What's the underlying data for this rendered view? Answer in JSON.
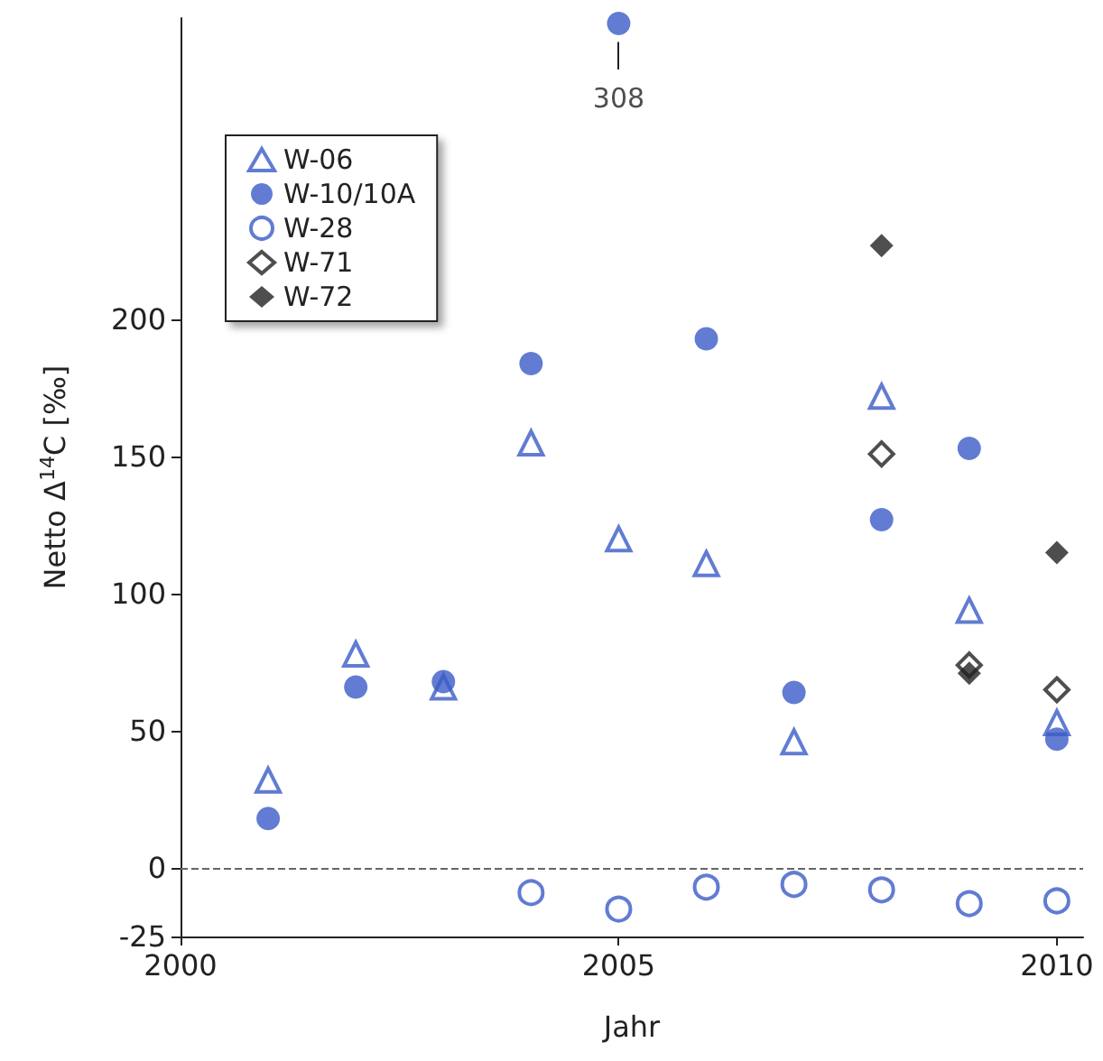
{
  "chart_data": {
    "type": "scatter",
    "xlabel": "Jahr",
    "ylabel": "Netto Δ$^{14}$C [‰]",
    "xlim": [
      2000,
      2010.3
    ],
    "xticks": [
      2000,
      2005,
      2010
    ],
    "ylim": [
      -25,
      310
    ],
    "yticks": [
      -25,
      0,
      50,
      100,
      150,
      200
    ],
    "grid": false,
    "legend": "top left",
    "ref_lines": [
      {
        "axis": "y",
        "value": 0,
        "color": "#666666",
        "line_style": "dashed"
      }
    ],
    "annotations": [
      {
        "text": "308",
        "x": 2005,
        "y": 308
      }
    ],
    "series": [
      {
        "name": "W-06",
        "color": "#3a5bc7",
        "marker": "triangle-open",
        "x": [
          2001,
          2002,
          2003,
          2004,
          2005,
          2006,
          2007,
          2008,
          2009,
          2010
        ],
        "values": [
          32,
          78,
          66,
          155,
          120,
          111,
          46,
          172,
          94,
          53
        ]
      },
      {
        "name": "W-10/10A",
        "color": "#3a5bc7",
        "marker": "circle",
        "x": [
          2001,
          2002,
          2003,
          2004,
          2005,
          2006,
          2007,
          2008,
          2009,
          2010
        ],
        "values": [
          18,
          66,
          68,
          184,
          308,
          193,
          64,
          127,
          153,
          47
        ]
      },
      {
        "name": "W-28",
        "color": "#3a5bc7",
        "marker": "circle-open",
        "x": [
          2004,
          2005,
          2006,
          2007,
          2008,
          2009,
          2010
        ],
        "values": [
          -9,
          -15,
          -7,
          -6,
          -8,
          -13,
          -12
        ]
      },
      {
        "name": "W-71",
        "color": "#222222",
        "marker": "diamond-open",
        "x": [
          2008,
          2009,
          2010
        ],
        "values": [
          151,
          74,
          65
        ]
      },
      {
        "name": "W-72",
        "color": "#222222",
        "marker": "diamond",
        "x": [
          2008,
          2009,
          2010
        ],
        "values": [
          227,
          71,
          115
        ]
      }
    ]
  }
}
